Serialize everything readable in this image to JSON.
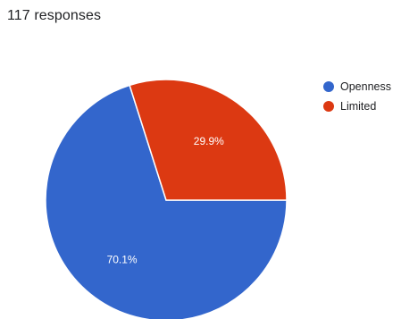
{
  "header": {
    "responses": "117 responses"
  },
  "chart_data": {
    "type": "pie",
    "slices": [
      {
        "label": "Openness",
        "value": 70.1,
        "value_label": "70.1%",
        "color": "#3366cc"
      },
      {
        "label": "Limited",
        "value": 29.9,
        "value_label": "29.9%",
        "color": "#dc3912"
      }
    ],
    "legend_position": "right"
  }
}
